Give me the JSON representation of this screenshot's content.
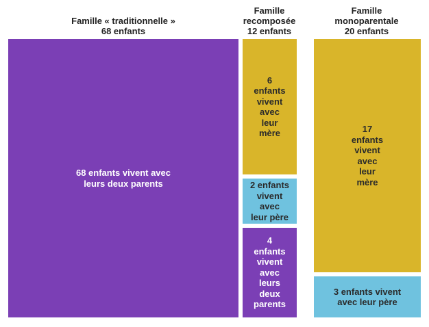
{
  "chart_data": {
    "type": "bar",
    "stacked": true,
    "categories": [
      "Famille « traditionnelle »\n68 enfants",
      "Famille\nrecomposée\n12 enfants",
      "Famille\nmonoparentale\n20 enfants"
    ],
    "columns": [
      {
        "total": 68,
        "segments": [
          {
            "value": 68,
            "color": "#7b3fb5",
            "label": "68 enfants vivent avec\nleurs deux parents"
          }
        ]
      },
      {
        "total": 12,
        "segments": [
          {
            "value": 6,
            "color": "#d9b52a",
            "label": "6\nenfants\nvivent\navec\nleur\nmère"
          },
          {
            "value": 2,
            "color": "#6fc2df",
            "label": "2 enfants\nvivent\navec\nleur père"
          },
          {
            "value": 4,
            "color": "#7b3fb5",
            "label": "4\nenfants\nvivent\navec\nleurs\ndeux\nparents"
          }
        ]
      },
      {
        "total": 20,
        "segments": [
          {
            "value": 17,
            "color": "#d9b52a",
            "label": "17\nenfants\nvivent\navec\nleur\nmère"
          },
          {
            "value": 3,
            "color": "#6fc2df",
            "label": "3 enfants vivent\navec leur père"
          }
        ]
      }
    ]
  }
}
